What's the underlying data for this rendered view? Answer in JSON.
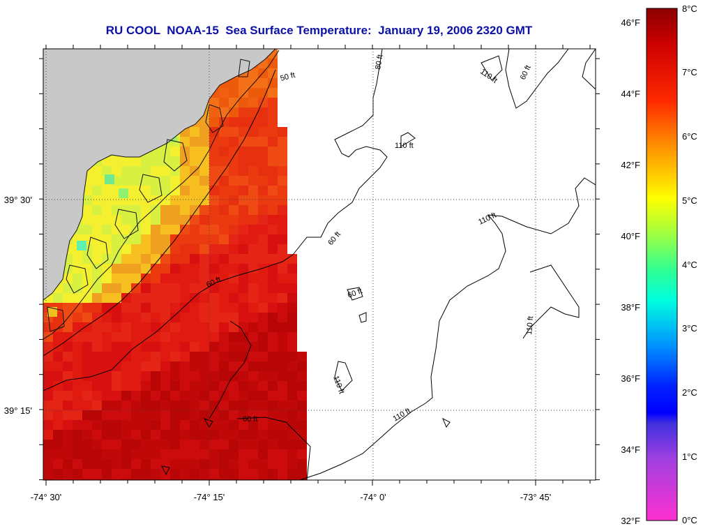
{
  "title": "RU COOL  NOAA-15  Sea Surface Temperature:  January 19, 2006 2320 GMT",
  "longitude_ticks": [
    "-74° 30'",
    "-74° 15'",
    "-74° 0'",
    "-73° 45'"
  ],
  "latitude_ticks": [
    "39° 30'",
    "39° 15'"
  ],
  "contour_labels": [
    "50 ft",
    "60 ft",
    "60 ft",
    "60 ft",
    "60 ft",
    "60 ft",
    "80 ft",
    "110 ft",
    "110 ft",
    "110 ft",
    "110 ft",
    "110 ft",
    "110 ft"
  ],
  "colorbar": {
    "fahrenheit": [
      "46°F",
      "44°F",
      "42°F",
      "40°F",
      "38°F",
      "36°F",
      "34°F",
      "32°F"
    ],
    "celsius": [
      "8°C",
      "7°C",
      "6°C",
      "5°C",
      "4°C",
      "3°C",
      "2°C",
      "1°C",
      "0°C"
    ]
  },
  "colors": {
    "land": "#c8c8c8",
    "title": "#0b10a6",
    "warm": "#e01010",
    "hot": "#a00000",
    "cool": "#f0f020"
  }
}
